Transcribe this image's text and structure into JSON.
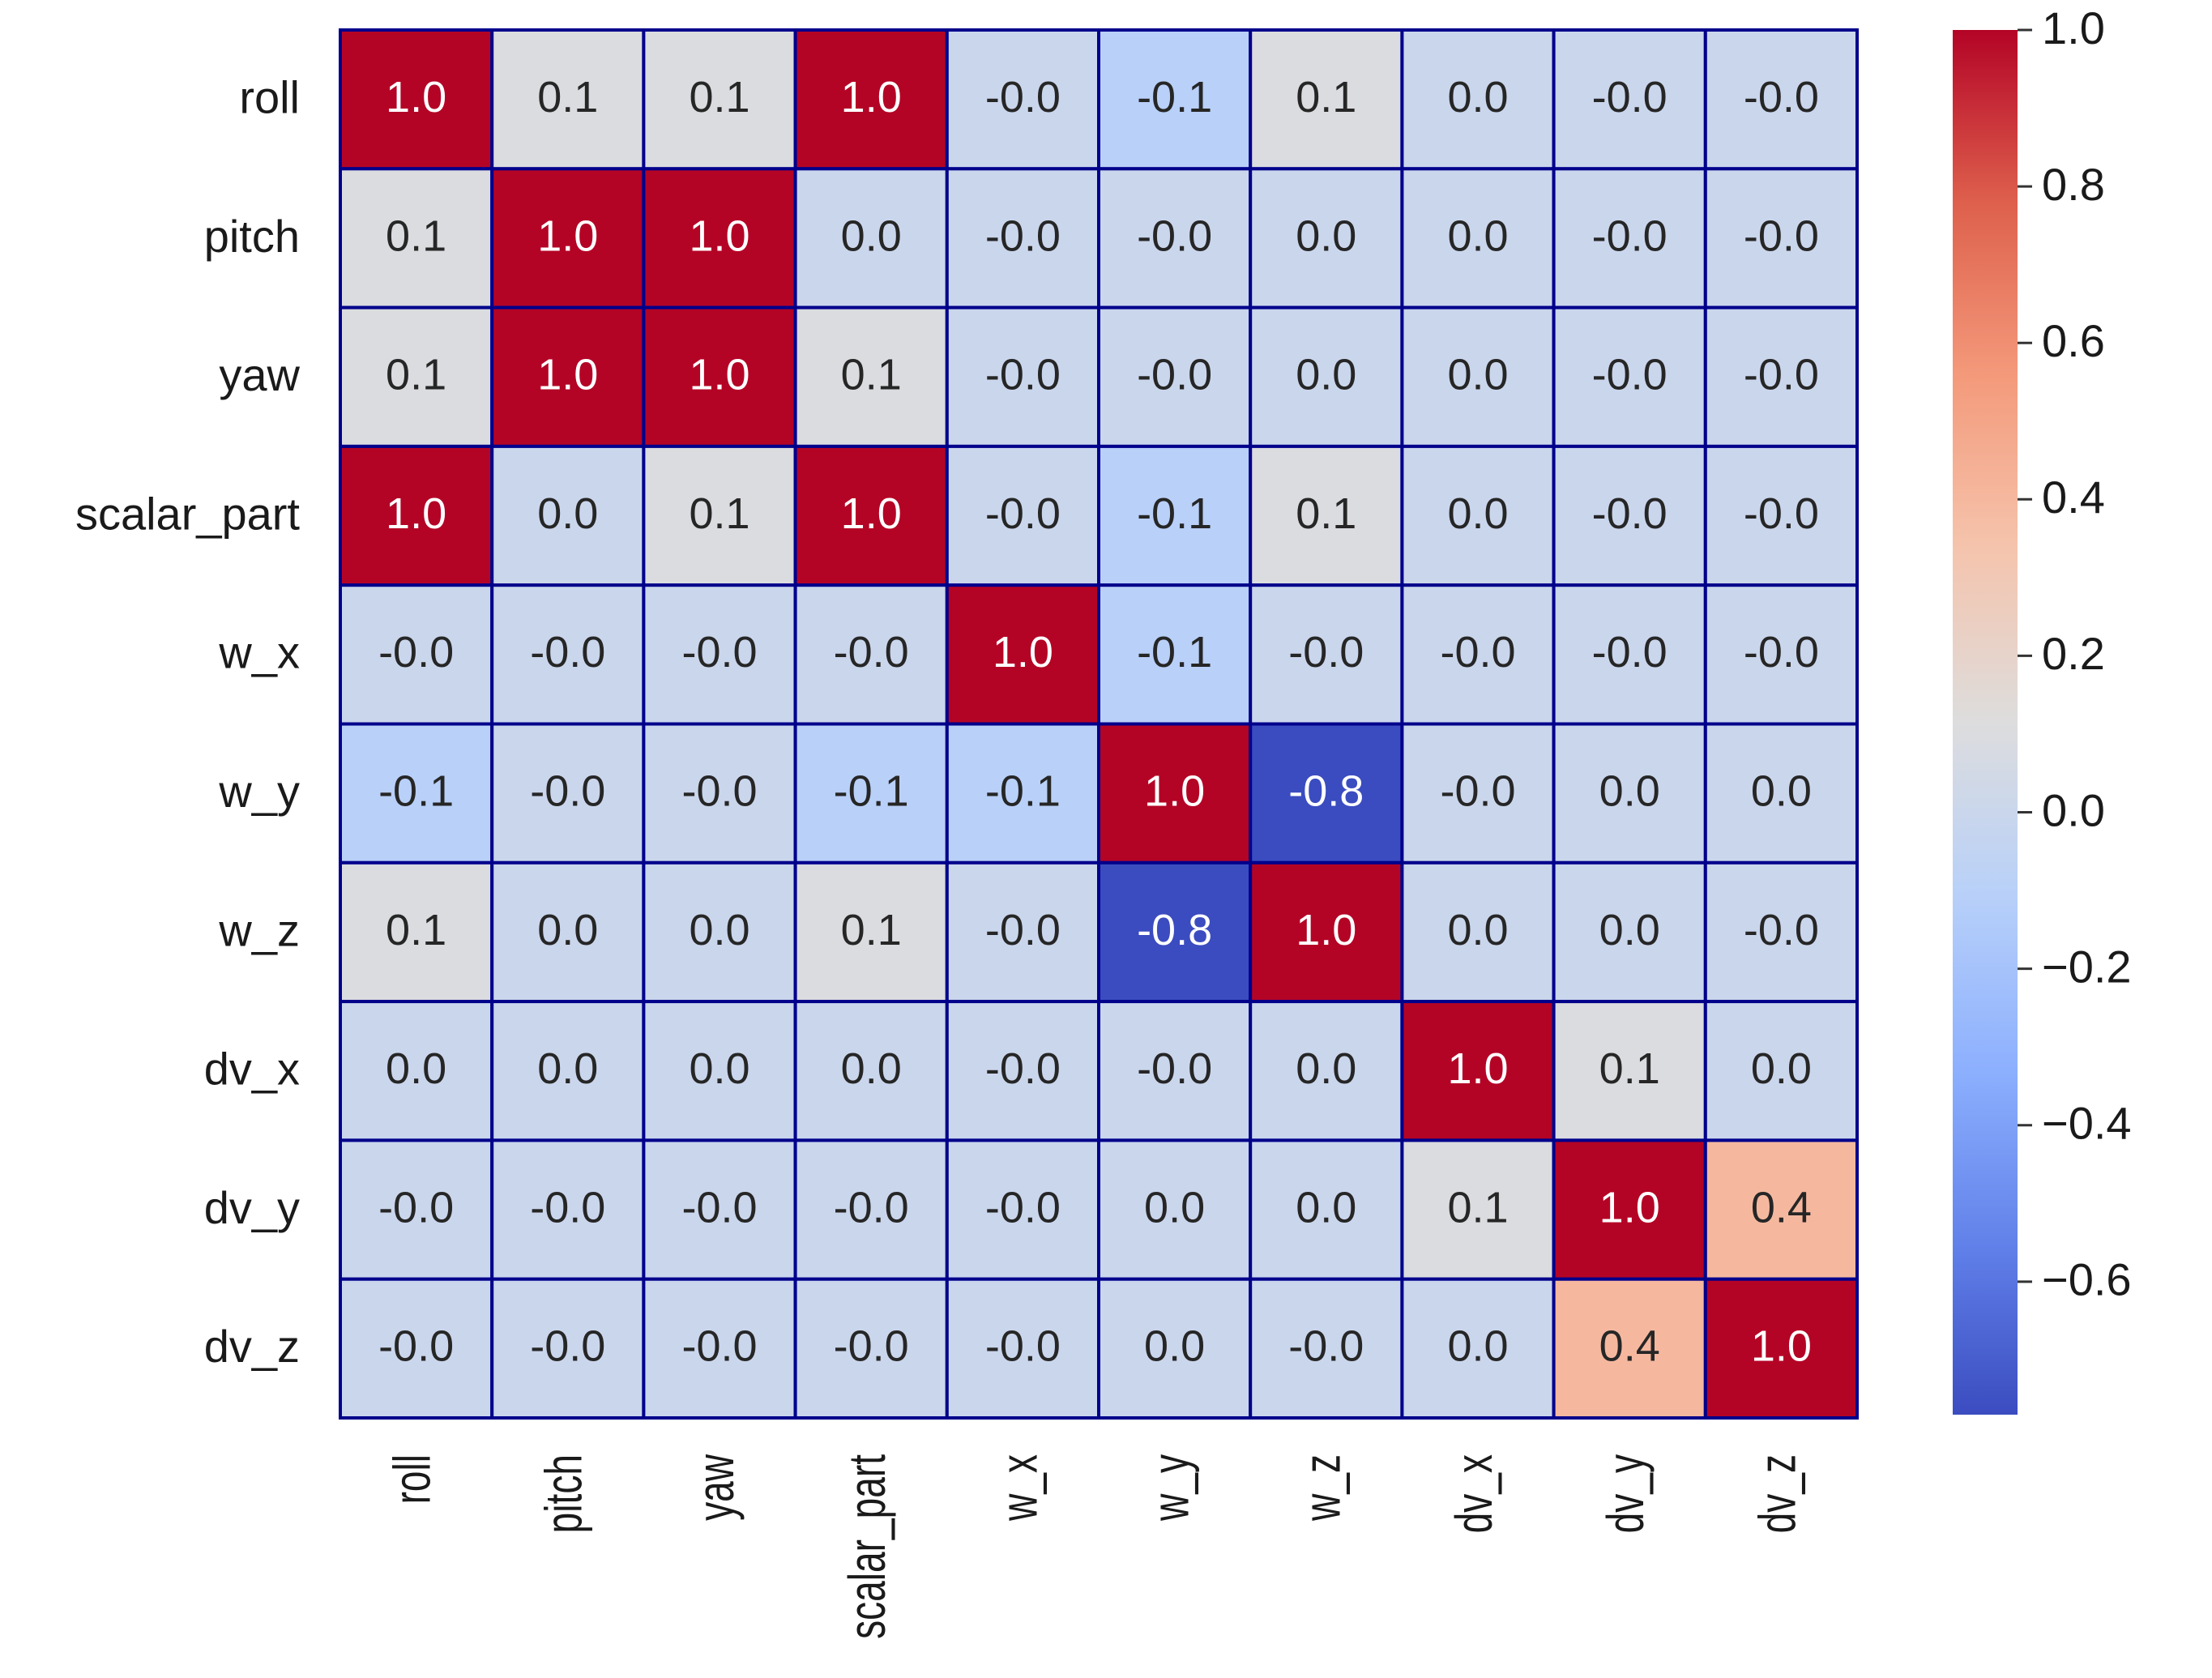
{
  "chart_data": {
    "type": "heatmap",
    "title": "",
    "xlabel": "",
    "ylabel": "",
    "row_labels": [
      "roll",
      "pitch",
      "yaw",
      "scalar_part",
      "w_x",
      "w_y",
      "w_z",
      "dv_x",
      "dv_y",
      "dv_z"
    ],
    "col_labels": [
      "roll",
      "pitch",
      "yaw",
      "scalar_part",
      "w_x",
      "w_y",
      "w_z",
      "dv_x",
      "dv_y",
      "dv_z"
    ],
    "values": [
      [
        1.0,
        0.1,
        0.1,
        1.0,
        -0.0,
        -0.1,
        0.1,
        0.0,
        -0.0,
        -0.0
      ],
      [
        0.1,
        1.0,
        1.0,
        0.0,
        -0.0,
        -0.0,
        0.0,
        0.0,
        -0.0,
        -0.0
      ],
      [
        0.1,
        1.0,
        1.0,
        0.1,
        -0.0,
        -0.0,
        0.0,
        0.0,
        -0.0,
        -0.0
      ],
      [
        1.0,
        0.0,
        0.1,
        1.0,
        -0.0,
        -0.1,
        0.1,
        0.0,
        -0.0,
        -0.0
      ],
      [
        -0.0,
        -0.0,
        -0.0,
        -0.0,
        1.0,
        -0.1,
        -0.0,
        -0.0,
        -0.0,
        -0.0
      ],
      [
        -0.1,
        -0.0,
        -0.0,
        -0.1,
        -0.1,
        1.0,
        -0.8,
        -0.0,
        0.0,
        0.0
      ],
      [
        0.1,
        0.0,
        0.0,
        0.1,
        -0.0,
        -0.8,
        1.0,
        0.0,
        0.0,
        -0.0
      ],
      [
        0.0,
        0.0,
        0.0,
        0.0,
        -0.0,
        -0.0,
        0.0,
        1.0,
        0.1,
        0.0
      ],
      [
        -0.0,
        -0.0,
        -0.0,
        -0.0,
        -0.0,
        0.0,
        0.0,
        0.1,
        1.0,
        0.4
      ],
      [
        -0.0,
        -0.0,
        -0.0,
        -0.0,
        -0.0,
        0.0,
        -0.0,
        0.0,
        0.4,
        1.0
      ]
    ],
    "colorbar": {
      "min": -0.77,
      "max": 1.0,
      "ticks": [
        1.0,
        0.8,
        0.6,
        0.4,
        0.2,
        0.0,
        -0.2,
        -0.4,
        -0.6
      ],
      "tick_labels": [
        "1.0",
        "0.8",
        "0.6",
        "0.4",
        "0.2",
        "0.0",
        "−0.2",
        "−0.4",
        "−0.6"
      ],
      "colormap": "coolwarm"
    },
    "cell_border_color": "#00008b",
    "annotation_format": "0.1f",
    "grid": false,
    "legend": "colorbar-right"
  }
}
